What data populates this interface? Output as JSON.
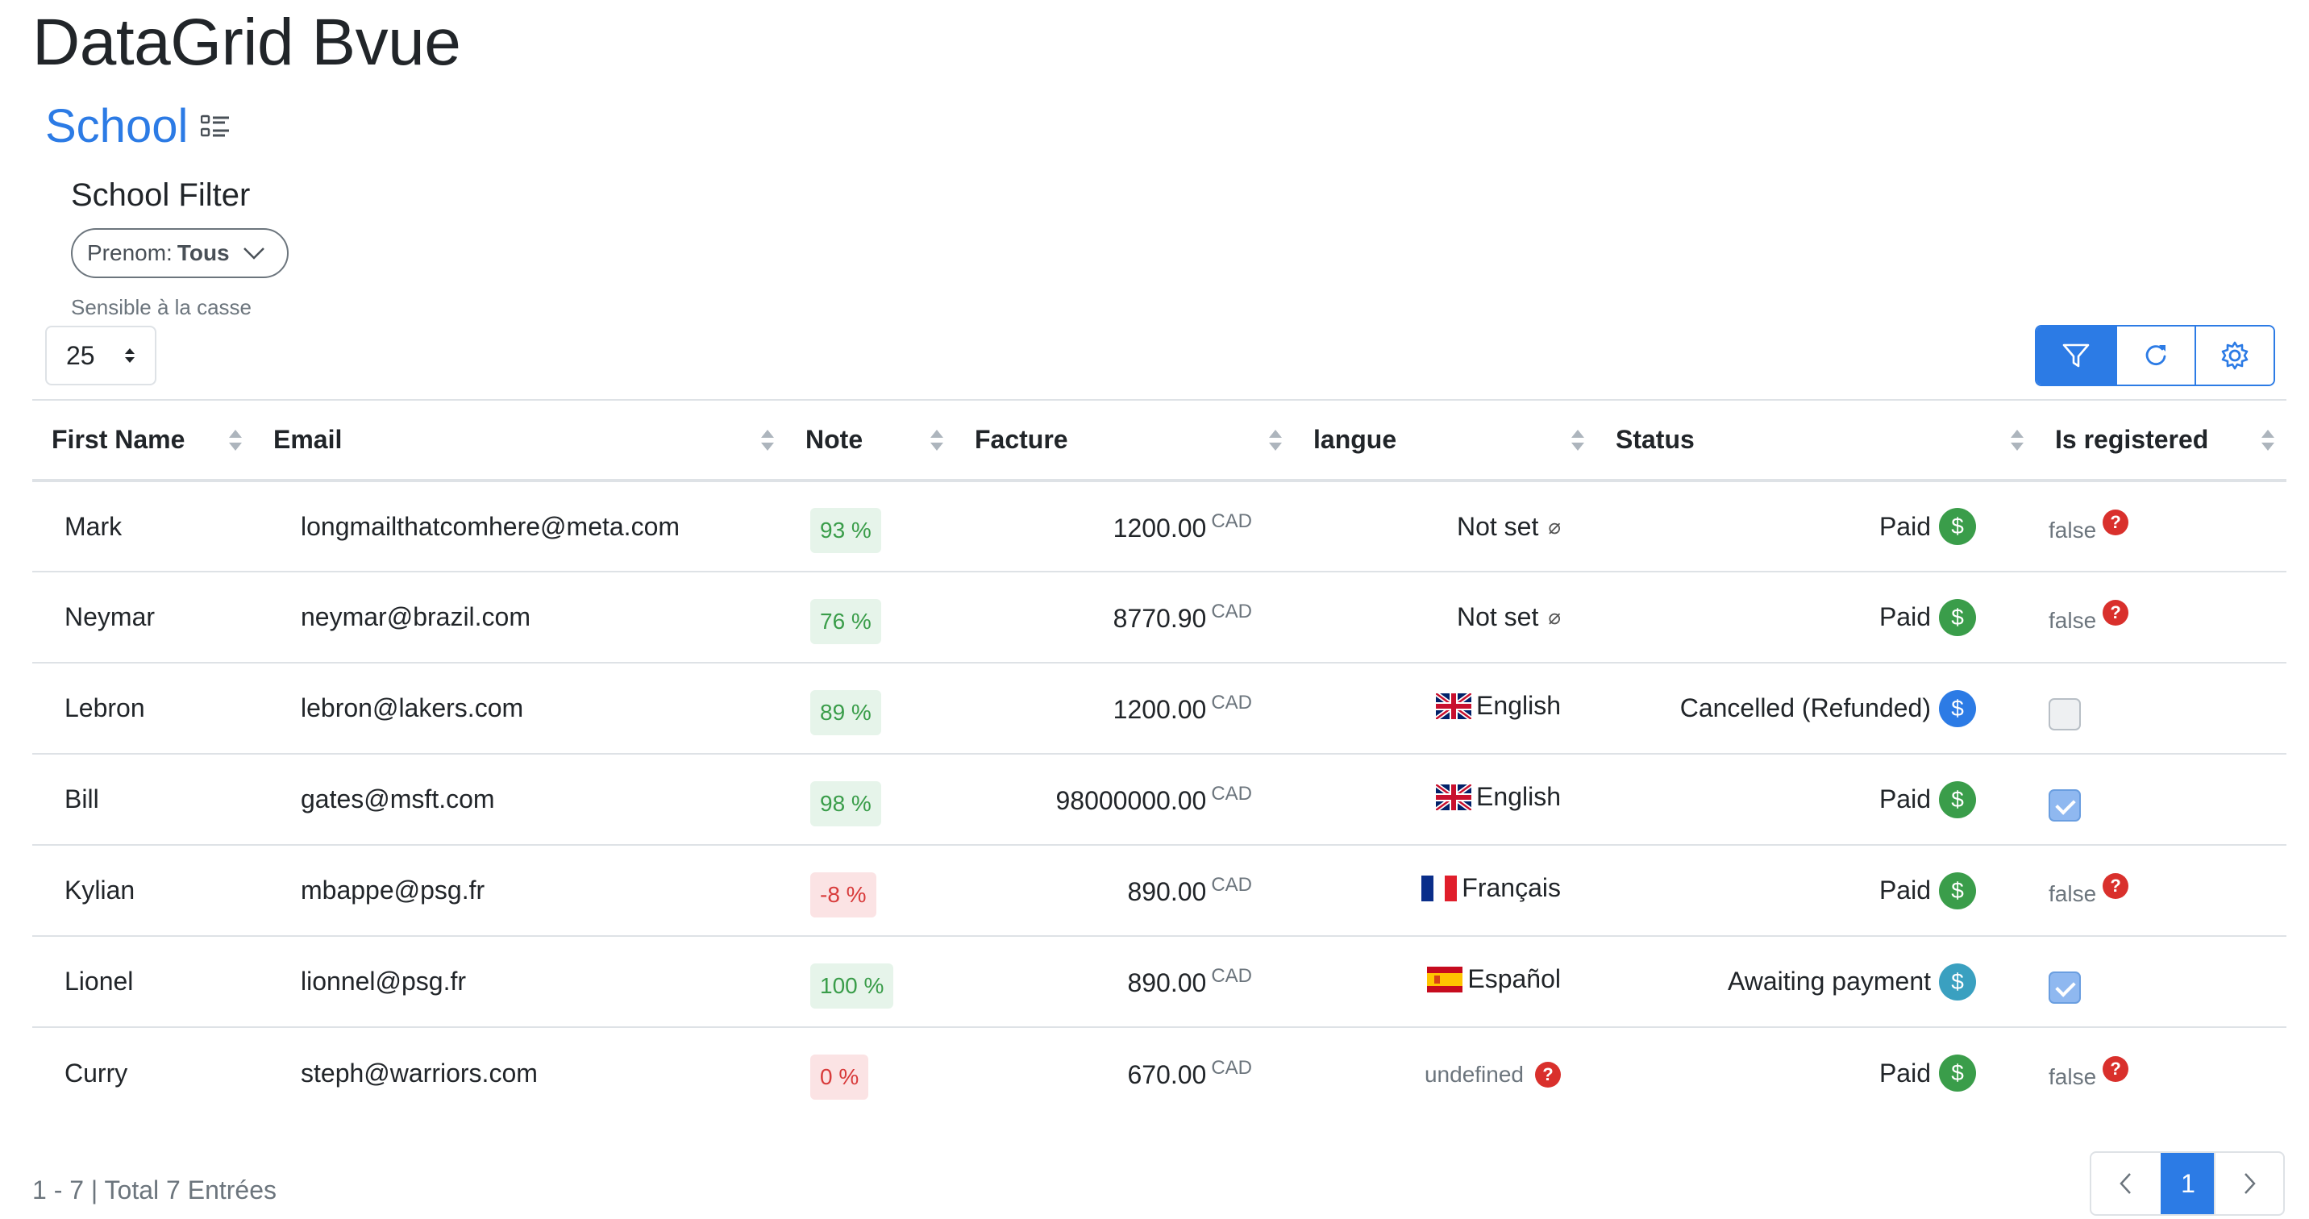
{
  "page": {
    "title": "DataGrid Bvue"
  },
  "school": {
    "title": "School",
    "icon": "list-check-icon"
  },
  "filter": {
    "title": "School Filter",
    "field_label": "Prenom:",
    "field_value": "Tous",
    "case_hint": "Sensible à la casse"
  },
  "per_page": {
    "value": "25"
  },
  "toolbar": {
    "filter_icon": "filter-icon",
    "refresh_icon": "refresh-icon",
    "settings_icon": "gear-icon",
    "accent": "#2c7be5"
  },
  "columns": [
    "First Name",
    "Email",
    "Note",
    "Facture",
    "langue",
    "Status",
    "Is registered"
  ],
  "rows": [
    {
      "first": "Mark",
      "email": "longmailthatcomhere@meta.com",
      "note": "93 %",
      "note_kind": "pos",
      "amount": "1200.00",
      "currency": "CAD",
      "lang": "Not set",
      "lang_kind": "notset",
      "lang_sym": "⌀",
      "status": "Paid",
      "status_color": "green",
      "reg": "false",
      "reg_kind": "false"
    },
    {
      "first": "Neymar",
      "email": "neymar@brazil.com",
      "note": "76 %",
      "note_kind": "pos",
      "amount": "8770.90",
      "currency": "CAD",
      "lang": "Not set",
      "lang_kind": "notset",
      "lang_sym": "⌀",
      "status": "Paid",
      "status_color": "green",
      "reg": "false",
      "reg_kind": "false"
    },
    {
      "first": "Lebron",
      "email": "lebron@lakers.com",
      "note": "89 %",
      "note_kind": "pos",
      "amount": "1200.00",
      "currency": "CAD",
      "lang": "English",
      "lang_kind": "uk",
      "status": "Cancelled (Refunded)",
      "status_color": "blue",
      "reg_kind": "unchecked"
    },
    {
      "first": "Bill",
      "email": "gates@msft.com",
      "note": "98 %",
      "note_kind": "pos",
      "amount": "98000000.00",
      "currency": "CAD",
      "lang": "English",
      "lang_kind": "uk",
      "status": "Paid",
      "status_color": "green",
      "reg_kind": "checked"
    },
    {
      "first": "Kylian",
      "email": "mbappe@psg.fr",
      "note": "-8 %",
      "note_kind": "neg",
      "amount": "890.00",
      "currency": "CAD",
      "lang": "Français",
      "lang_kind": "fr",
      "status": "Paid",
      "status_color": "green",
      "reg": "false",
      "reg_kind": "false"
    },
    {
      "first": "Lionel",
      "email": "lionnel@psg.fr",
      "note": "100 %",
      "note_kind": "pos",
      "amount": "890.00",
      "currency": "CAD",
      "lang": "Español",
      "lang_kind": "es",
      "status": "Awaiting payment",
      "status_color": "teal",
      "reg_kind": "checked"
    },
    {
      "first": "Curry",
      "email": "steph@warriors.com",
      "note": "0 %",
      "note_kind": "neg",
      "amount": "670.00",
      "currency": "CAD",
      "lang": "undefined",
      "lang_kind": "undefined",
      "status": "Paid",
      "status_color": "green",
      "reg": "false",
      "reg_kind": "false"
    }
  ],
  "footer": {
    "info": "1 - 7 | Total 7 Entrées"
  },
  "pager": {
    "current": "1"
  }
}
